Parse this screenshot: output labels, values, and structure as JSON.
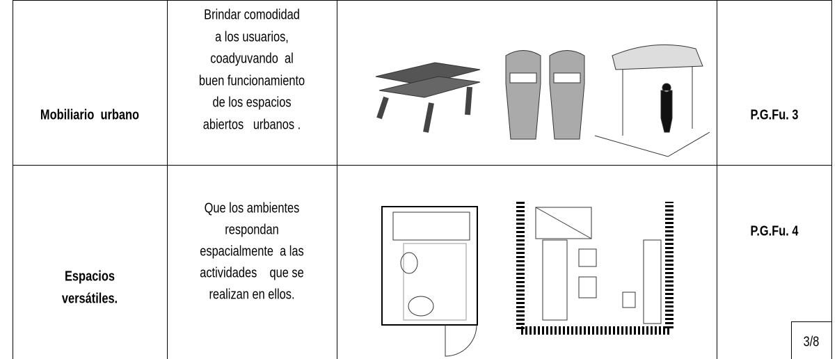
{
  "table": {
    "rows": [
      {
        "element": [
          "Mobiliario  urbano"
        ],
        "description": [
          "Brindar comodidad",
          "a los usuarios,",
          "coadyuvando  al",
          "buen funcionamiento",
          "de los espacios",
          "abiertos   urbanos ."
        ],
        "code": "P.G.Fu. 3"
      },
      {
        "element": [
          "Espacios",
          "versátiles."
        ],
        "description": [
          "Que los ambientes",
          "respondan",
          "espacialmente  a las",
          "actividades    que se",
          "realizan en ellos."
        ],
        "code": "P.G.Fu. 4"
      }
    ]
  },
  "page_number": "3/8"
}
